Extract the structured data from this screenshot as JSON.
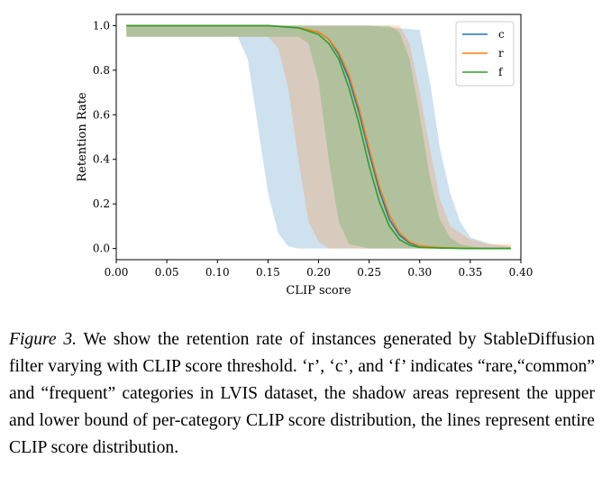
{
  "chart_data": {
    "type": "line",
    "xlabel": "CLIP score",
    "ylabel": "Retention Rate",
    "xlim": [
      0.0,
      0.4
    ],
    "ylim": [
      -0.05,
      1.05
    ],
    "xticks": [
      "0.00",
      "0.05",
      "0.10",
      "0.15",
      "0.20",
      "0.25",
      "0.30",
      "0.35",
      "0.40"
    ],
    "yticks": [
      "0.0",
      "0.2",
      "0.4",
      "0.6",
      "0.8",
      "1.0"
    ],
    "legend_position": "top-right",
    "series": [
      {
        "name": "c",
        "color": "#1f77b4",
        "x": [
          0.01,
          0.15,
          0.18,
          0.2,
          0.21,
          0.22,
          0.23,
          0.24,
          0.25,
          0.26,
          0.27,
          0.28,
          0.29,
          0.3,
          0.32,
          0.35,
          0.39
        ],
        "y": [
          1.0,
          1.0,
          0.99,
          0.97,
          0.94,
          0.87,
          0.76,
          0.61,
          0.43,
          0.26,
          0.13,
          0.06,
          0.025,
          0.01,
          0.003,
          0.0,
          0.0
        ]
      },
      {
        "name": "r",
        "color": "#ff7f0e",
        "x": [
          0.01,
          0.15,
          0.18,
          0.2,
          0.21,
          0.22,
          0.23,
          0.24,
          0.25,
          0.26,
          0.27,
          0.28,
          0.29,
          0.3,
          0.32,
          0.35,
          0.39
        ],
        "y": [
          1.0,
          1.0,
          0.99,
          0.97,
          0.94,
          0.88,
          0.78,
          0.63,
          0.45,
          0.28,
          0.15,
          0.07,
          0.03,
          0.012,
          0.004,
          0.0,
          0.0
        ]
      },
      {
        "name": "f",
        "color": "#2ca02c",
        "x": [
          0.01,
          0.15,
          0.18,
          0.2,
          0.21,
          0.22,
          0.23,
          0.24,
          0.25,
          0.26,
          0.27,
          0.28,
          0.29,
          0.3,
          0.32,
          0.35,
          0.39
        ],
        "y": [
          1.0,
          1.0,
          0.99,
          0.96,
          0.92,
          0.85,
          0.72,
          0.56,
          0.37,
          0.21,
          0.1,
          0.04,
          0.015,
          0.005,
          0.002,
          0.0,
          0.0
        ]
      }
    ],
    "bands": [
      {
        "series": "c",
        "color": "#1f77b4",
        "x": [
          0.01,
          0.12,
          0.13,
          0.14,
          0.15,
          0.16,
          0.17,
          0.18,
          0.2,
          0.25,
          0.3,
          0.31,
          0.32,
          0.33,
          0.34,
          0.35,
          0.37,
          0.39
        ],
        "upper": [
          1.0,
          1.0,
          1.0,
          1.0,
          1.0,
          1.0,
          1.0,
          1.0,
          1.0,
          1.0,
          0.98,
          0.75,
          0.45,
          0.25,
          0.12,
          0.05,
          0.02,
          0.01
        ],
        "lower": [
          0.95,
          0.95,
          0.85,
          0.55,
          0.25,
          0.07,
          0.01,
          0.0,
          0.0,
          0.0,
          0.0,
          0.0,
          0.0,
          0.0,
          0.0,
          0.0,
          0.0,
          0.0
        ]
      },
      {
        "series": "r",
        "color": "#ff7f0e",
        "x": [
          0.01,
          0.15,
          0.16,
          0.17,
          0.18,
          0.19,
          0.2,
          0.21,
          0.25,
          0.28,
          0.29,
          0.3,
          0.31,
          0.32,
          0.33,
          0.35,
          0.37,
          0.39
        ],
        "upper": [
          1.0,
          1.0,
          1.0,
          1.0,
          1.0,
          1.0,
          1.0,
          1.0,
          1.0,
          1.0,
          0.92,
          0.7,
          0.45,
          0.22,
          0.1,
          0.04,
          0.02,
          0.02
        ],
        "lower": [
          0.95,
          0.95,
          0.9,
          0.72,
          0.4,
          0.12,
          0.03,
          0.0,
          0.0,
          0.0,
          0.0,
          0.0,
          0.0,
          0.0,
          0.0,
          0.0,
          0.0,
          0.0
        ]
      },
      {
        "series": "f",
        "color": "#2ca02c",
        "x": [
          0.01,
          0.18,
          0.19,
          0.2,
          0.21,
          0.22,
          0.23,
          0.25,
          0.27,
          0.28,
          0.29,
          0.3,
          0.31,
          0.32,
          0.33,
          0.34,
          0.35,
          0.37,
          0.39
        ],
        "upper": [
          1.0,
          1.0,
          1.0,
          1.0,
          1.0,
          1.0,
          1.0,
          1.0,
          1.0,
          0.97,
          0.85,
          0.6,
          0.32,
          0.13,
          0.05,
          0.02,
          0.01,
          0.0,
          0.0
        ],
        "lower": [
          0.95,
          0.95,
          0.92,
          0.75,
          0.4,
          0.12,
          0.02,
          0.0,
          0.0,
          0.0,
          0.0,
          0.0,
          0.0,
          0.0,
          0.0,
          0.0,
          0.0,
          0.0,
          0.0
        ]
      }
    ]
  },
  "caption": {
    "label": "Figure 3.",
    "text": " We show the retention rate of instances generated by StableDiffusion filter varying with CLIP score threshold. ‘r’, ‘c’, and ‘f’ indicates “rare,“common” and “frequent” categories in LVIS dataset, the shadow areas represent the upper and lower bound of per-category CLIP score distribution, the lines represent entire CLIP score distribution."
  }
}
